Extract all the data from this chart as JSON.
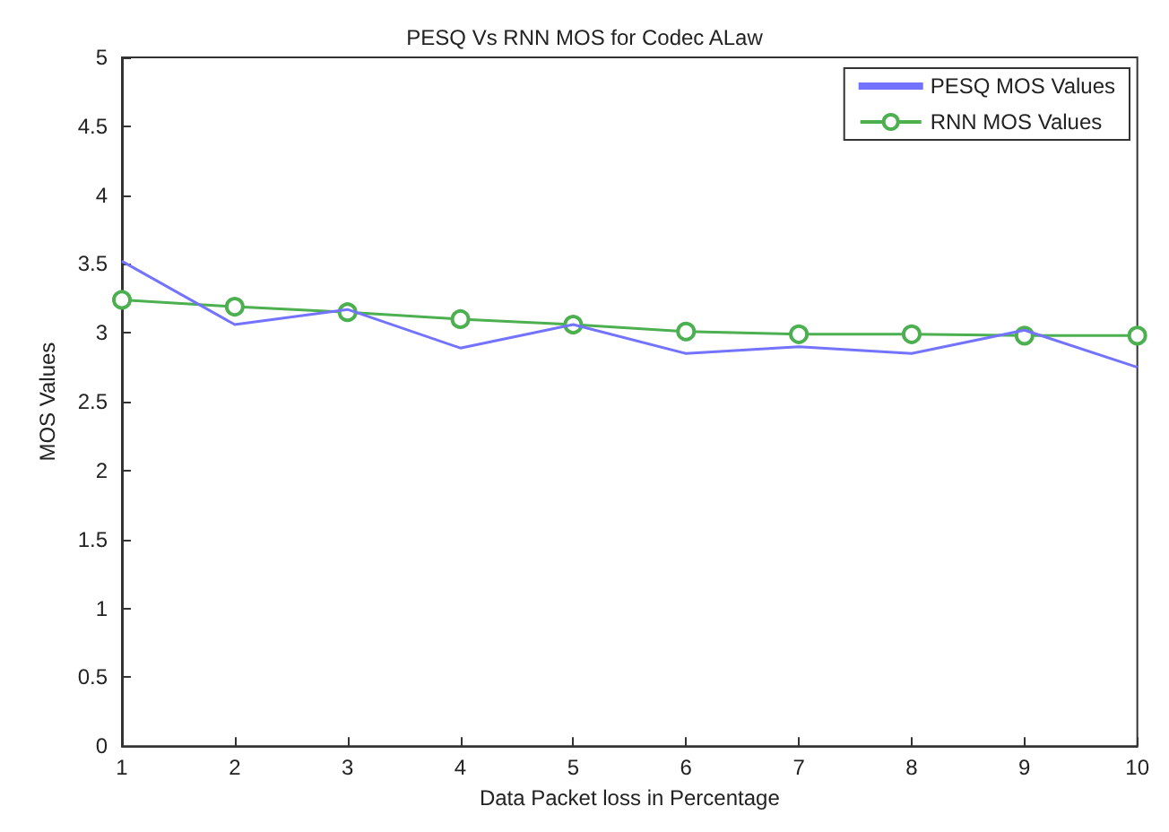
{
  "chart_data": {
    "type": "line",
    "title": "PESQ Vs RNN MOS for Codec ALaw",
    "xlabel": "Data Packet loss in Percentage",
    "ylabel": "MOS Values",
    "x": [
      1,
      2,
      3,
      4,
      5,
      6,
      7,
      8,
      9,
      10
    ],
    "xlim": [
      1,
      10
    ],
    "xticks": [
      1,
      2,
      3,
      4,
      5,
      6,
      7,
      8,
      9,
      10
    ],
    "ylim": [
      0,
      5
    ],
    "yticks": [
      0,
      0.5,
      1,
      1.5,
      2,
      2.5,
      3,
      3.5,
      4,
      4.5,
      5
    ],
    "grid": false,
    "legend": "top right",
    "series": [
      {
        "name": "PESQ MOS Values",
        "color": "#7373ff",
        "marker": "none",
        "values": [
          3.52,
          3.06,
          3.17,
          2.89,
          3.06,
          2.85,
          2.9,
          2.85,
          3.02,
          2.75
        ]
      },
      {
        "name": "RNN MOS Values",
        "color": "#4caf50",
        "marker": "circle",
        "values": [
          3.24,
          3.19,
          3.15,
          3.1,
          3.06,
          3.01,
          2.99,
          2.99,
          2.98,
          2.98
        ]
      }
    ]
  }
}
